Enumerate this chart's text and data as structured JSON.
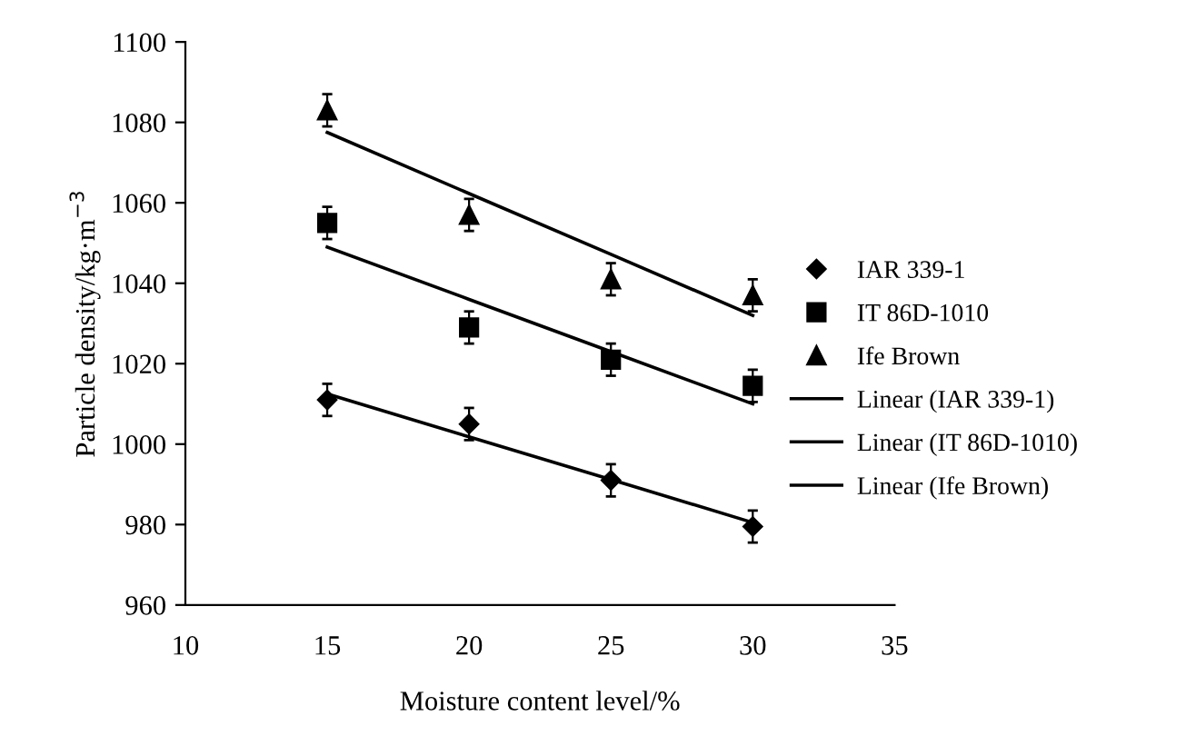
{
  "chart_data": {
    "type": "scatter",
    "xlabel": "Moisture content level/%",
    "ylabel": "Particle density/kg·m$^{−3}$",
    "x": [
      15,
      20,
      25,
      30
    ],
    "series": [
      {
        "name": "IAR 339-1",
        "color": "#000000",
        "marker": "diamond",
        "values": [
          1011,
          1005,
          991,
          979.5
        ],
        "errors": [
          4,
          4,
          4,
          4
        ]
      },
      {
        "name": "IT 86D-1010",
        "color": "#000000",
        "marker": "square",
        "values": [
          1055,
          1029,
          1021,
          1014.5
        ],
        "errors": [
          4,
          4,
          4,
          4
        ]
      },
      {
        "name": "Ife Brown",
        "color": "#000000",
        "marker": "triangle",
        "values": [
          1083,
          1057,
          1041,
          1037
        ],
        "errors": [
          4,
          4,
          4,
          4
        ]
      },
      {
        "name": "Linear (IAR 339-1)",
        "type": "line",
        "color": "#000000",
        "values": [
          1012.5,
          1001.8,
          991.2,
          980.5
        ]
      },
      {
        "name": "Linear (IT 86D-1010)",
        "type": "line",
        "color": "#000000",
        "values": [
          1049,
          1036,
          1023,
          1010
        ]
      },
      {
        "name": "Linear (Ife Brown)",
        "type": "line",
        "color": "#000000",
        "values": [
          1077.5,
          1062.3,
          1047.2,
          1032
        ]
      }
    ],
    "xlim": [
      10,
      35
    ],
    "xticks": [
      10,
      15,
      20,
      25,
      30,
      35
    ],
    "ylim": [
      960,
      1100
    ],
    "yticks": [
      960,
      980,
      1000,
      1020,
      1040,
      1060,
      1080,
      1100
    ],
    "grid": false,
    "legend": "right"
  }
}
